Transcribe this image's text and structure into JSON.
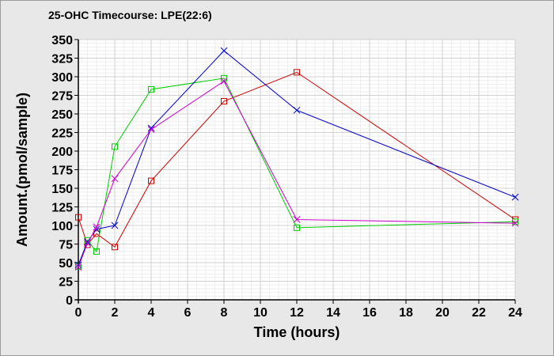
{
  "chart_data": {
    "type": "line",
    "title": "25-OHC Timecourse: LPE(22:6)",
    "xlabel": "Time (hours)",
    "ylabel": "Amount.(pmol/sample)",
    "xlim": [
      0,
      24
    ],
    "ylim": [
      0,
      350
    ],
    "xticks": [
      0,
      2,
      4,
      6,
      8,
      10,
      12,
      14,
      16,
      18,
      20,
      22,
      24
    ],
    "yticks": [
      0,
      25,
      50,
      75,
      100,
      125,
      150,
      175,
      200,
      225,
      250,
      275,
      300,
      325,
      350
    ],
    "grid": true,
    "legend": "none",
    "series": [
      {
        "color": "#d00000",
        "marker": "square",
        "x": [
          0,
          0.5,
          1,
          2,
          4,
          8,
          12,
          24
        ],
        "y": [
          111,
          74,
          89,
          71,
          160,
          267,
          306,
          108
        ]
      },
      {
        "color": "#00cc00",
        "marker": "square",
        "x": [
          0,
          0.5,
          1,
          2,
          4,
          8,
          12,
          24
        ],
        "y": [
          45,
          80,
          65,
          206,
          283,
          298,
          97,
          105
        ]
      },
      {
        "color": "#0000cc",
        "marker": "x",
        "x": [
          0,
          0.5,
          1,
          2,
          4,
          8,
          12,
          24
        ],
        "y": [
          47,
          78,
          95,
          100,
          231,
          335,
          255,
          138
        ]
      },
      {
        "color": "#cc00cc",
        "marker": "x",
        "x": [
          0,
          0.5,
          1,
          2,
          4,
          8,
          12,
          24
        ],
        "y": [
          44,
          76,
          98,
          163,
          229,
          294,
          108,
          103
        ]
      }
    ]
  }
}
